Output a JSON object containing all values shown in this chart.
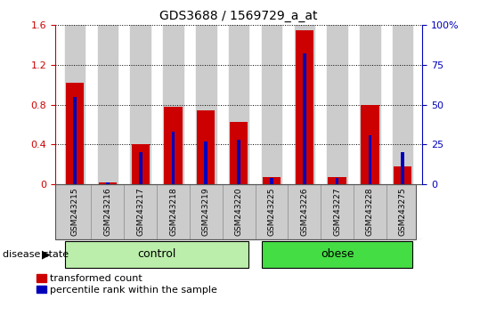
{
  "title": "GDS3688 / 1569729_a_at",
  "categories": [
    "GSM243215",
    "GSM243216",
    "GSM243217",
    "GSM243218",
    "GSM243219",
    "GSM243220",
    "GSM243225",
    "GSM243226",
    "GSM243227",
    "GSM243228",
    "GSM243275"
  ],
  "red_values": [
    1.02,
    0.02,
    0.4,
    0.78,
    0.74,
    0.63,
    0.07,
    1.55,
    0.07,
    0.8,
    0.18
  ],
  "blue_values_pct": [
    55,
    1,
    20,
    33,
    27,
    28,
    4,
    82,
    4,
    31,
    20
  ],
  "ylim_left": [
    0,
    1.6
  ],
  "ylim_right": [
    0,
    100
  ],
  "yticks_left": [
    0,
    0.4,
    0.8,
    1.2,
    1.6
  ],
  "yticks_right": [
    0,
    25,
    50,
    75,
    100
  ],
  "ytick_labels_left": [
    "0",
    "0.4",
    "0.8",
    "1.2",
    "1.6"
  ],
  "ytick_labels_right": [
    "0",
    "25",
    "50",
    "75",
    "100%"
  ],
  "red_color": "#CC0000",
  "blue_color": "#0000BB",
  "control_bg_light": "#BBEEAA",
  "obese_bg": "#44DD44",
  "bar_bg": "#CCCCCC",
  "legend_red": "transformed count",
  "legend_blue": "percentile rank within the sample",
  "disease_state_label": "disease state",
  "control_label": "control",
  "obese_label": "obese",
  "red_bar_width": 0.55,
  "blue_bar_width": 0.1,
  "n_control": 6,
  "n_obese": 5
}
